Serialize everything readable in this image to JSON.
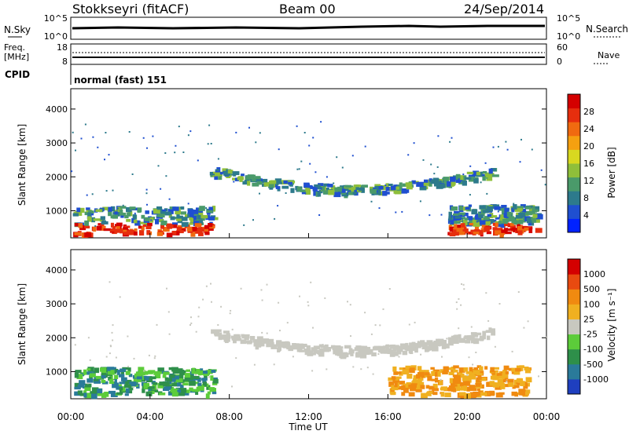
{
  "header": {
    "station": "Stokkseyri (fitACF)",
    "beam": "Beam 00",
    "date": "24/Sep/2014"
  },
  "status_panels": {
    "nsky_label": "N.Sky",
    "nsky_ticks": [
      "10^5",
      "10^0"
    ],
    "nsearch_label": "N.Search",
    "nsearch_ticks": [
      "10^5",
      "10^0"
    ],
    "freq_label": "Freq.",
    "freq_unit": "[MHz]",
    "freq_ticks": [
      "18",
      "8"
    ],
    "nave_label": "Nave",
    "nave_ticks": [
      "60",
      "0"
    ],
    "cpid_label": "CPID",
    "cpid_value": "normal (fast) 151"
  },
  "chart_data": [
    {
      "type": "heatmap",
      "title": "",
      "ylabel": "Slant Range [km]",
      "xlabel": "Time UT",
      "x_ticks": [
        "00:00",
        "04:00",
        "08:00",
        "12:00",
        "16:00",
        "20:00",
        "00:00"
      ],
      "y_ticks": [
        1000,
        2000,
        3000,
        4000
      ],
      "ylim": [
        200,
        4600
      ],
      "xlim_hours": [
        0,
        24
      ],
      "colorbar": {
        "label": "Power [dB]",
        "ticks": [
          "28",
          "24",
          "20",
          "16",
          "12",
          "8",
          "4"
        ],
        "colors": [
          "#0022ff",
          "#1f4fd0",
          "#2d7a8c",
          "#4a9a6a",
          "#8fbf3a",
          "#d8d820",
          "#f5a010",
          "#f06a10",
          "#e62e0e",
          "#d40000"
        ]
      },
      "regions": [
        {
          "name": "near range band",
          "t0": 0.1,
          "t1": 7.2,
          "r0": 350,
          "r1": 1150,
          "level": "high"
        },
        {
          "name": "mid range arc",
          "t0": 7.0,
          "t1": 21.3,
          "r0": 1500,
          "r1": 2400,
          "level": "medium"
        },
        {
          "name": "late near range",
          "t0": 19.0,
          "t1": 23.5,
          "r0": 350,
          "r1": 1200,
          "level": "high"
        }
      ]
    },
    {
      "type": "heatmap",
      "title": "",
      "ylabel": "Slant Range [km]",
      "xlabel": "Time UT",
      "x_ticks": [
        "00:00",
        "04:00",
        "08:00",
        "12:00",
        "16:00",
        "20:00",
        "00:00"
      ],
      "y_ticks": [
        1000,
        2000,
        3000,
        4000
      ],
      "ylim": [
        200,
        4600
      ],
      "xlim_hours": [
        0,
        24
      ],
      "colorbar": {
        "label": "Velocity [m s⁻¹]",
        "ticks": [
          "1000",
          "500",
          "100",
          "25",
          "-25",
          "-100",
          "-500",
          "-1000"
        ],
        "colors": [
          "#1f3fbf",
          "#2a7a9a",
          "#2e8f4a",
          "#5ccc3a",
          "#c8c8c0",
          "#f0b020",
          "#f08a10",
          "#e84a10",
          "#d40000"
        ]
      },
      "regions": [
        {
          "name": "near range toward",
          "t0": 0.1,
          "t1": 7.2,
          "r0": 350,
          "r1": 1150,
          "velocity": "positive"
        },
        {
          "name": "mid range ground scatter",
          "t0": 7.0,
          "t1": 21.3,
          "r0": 1500,
          "r1": 2400,
          "velocity": "near zero"
        },
        {
          "name": "late near range away",
          "t0": 16.0,
          "t1": 23.0,
          "r0": 350,
          "r1": 1200,
          "velocity": "negative"
        }
      ]
    }
  ]
}
